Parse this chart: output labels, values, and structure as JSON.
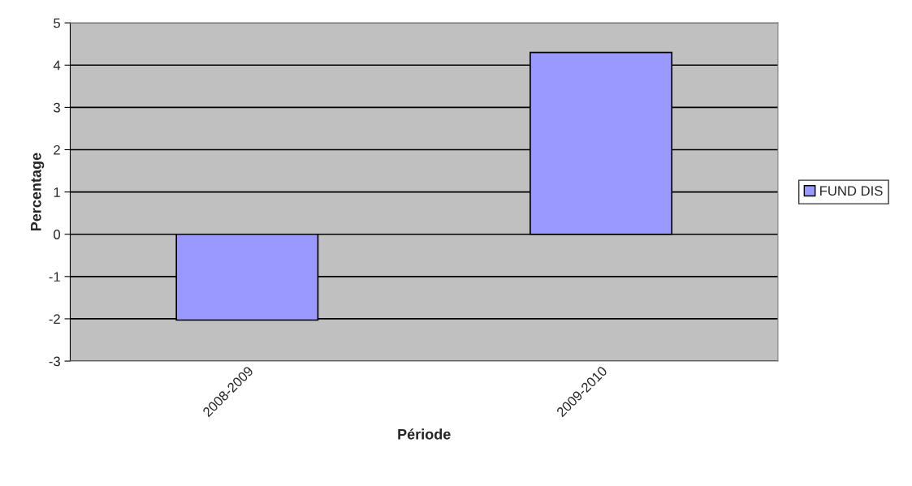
{
  "chart_data": {
    "type": "bar",
    "xlabel": "Période",
    "ylabel": "Percentage",
    "categories": [
      "2008-2009",
      "2009-2010"
    ],
    "series": [
      {
        "name": "FUND DIS",
        "color": "#9999ff",
        "values": [
          -2.03,
          4.3
        ]
      }
    ],
    "ylim": [
      -3,
      5
    ],
    "yticks": [
      -3,
      -2,
      -1,
      0,
      1,
      2,
      3,
      4,
      5
    ],
    "grid": "y",
    "legend": "right"
  }
}
